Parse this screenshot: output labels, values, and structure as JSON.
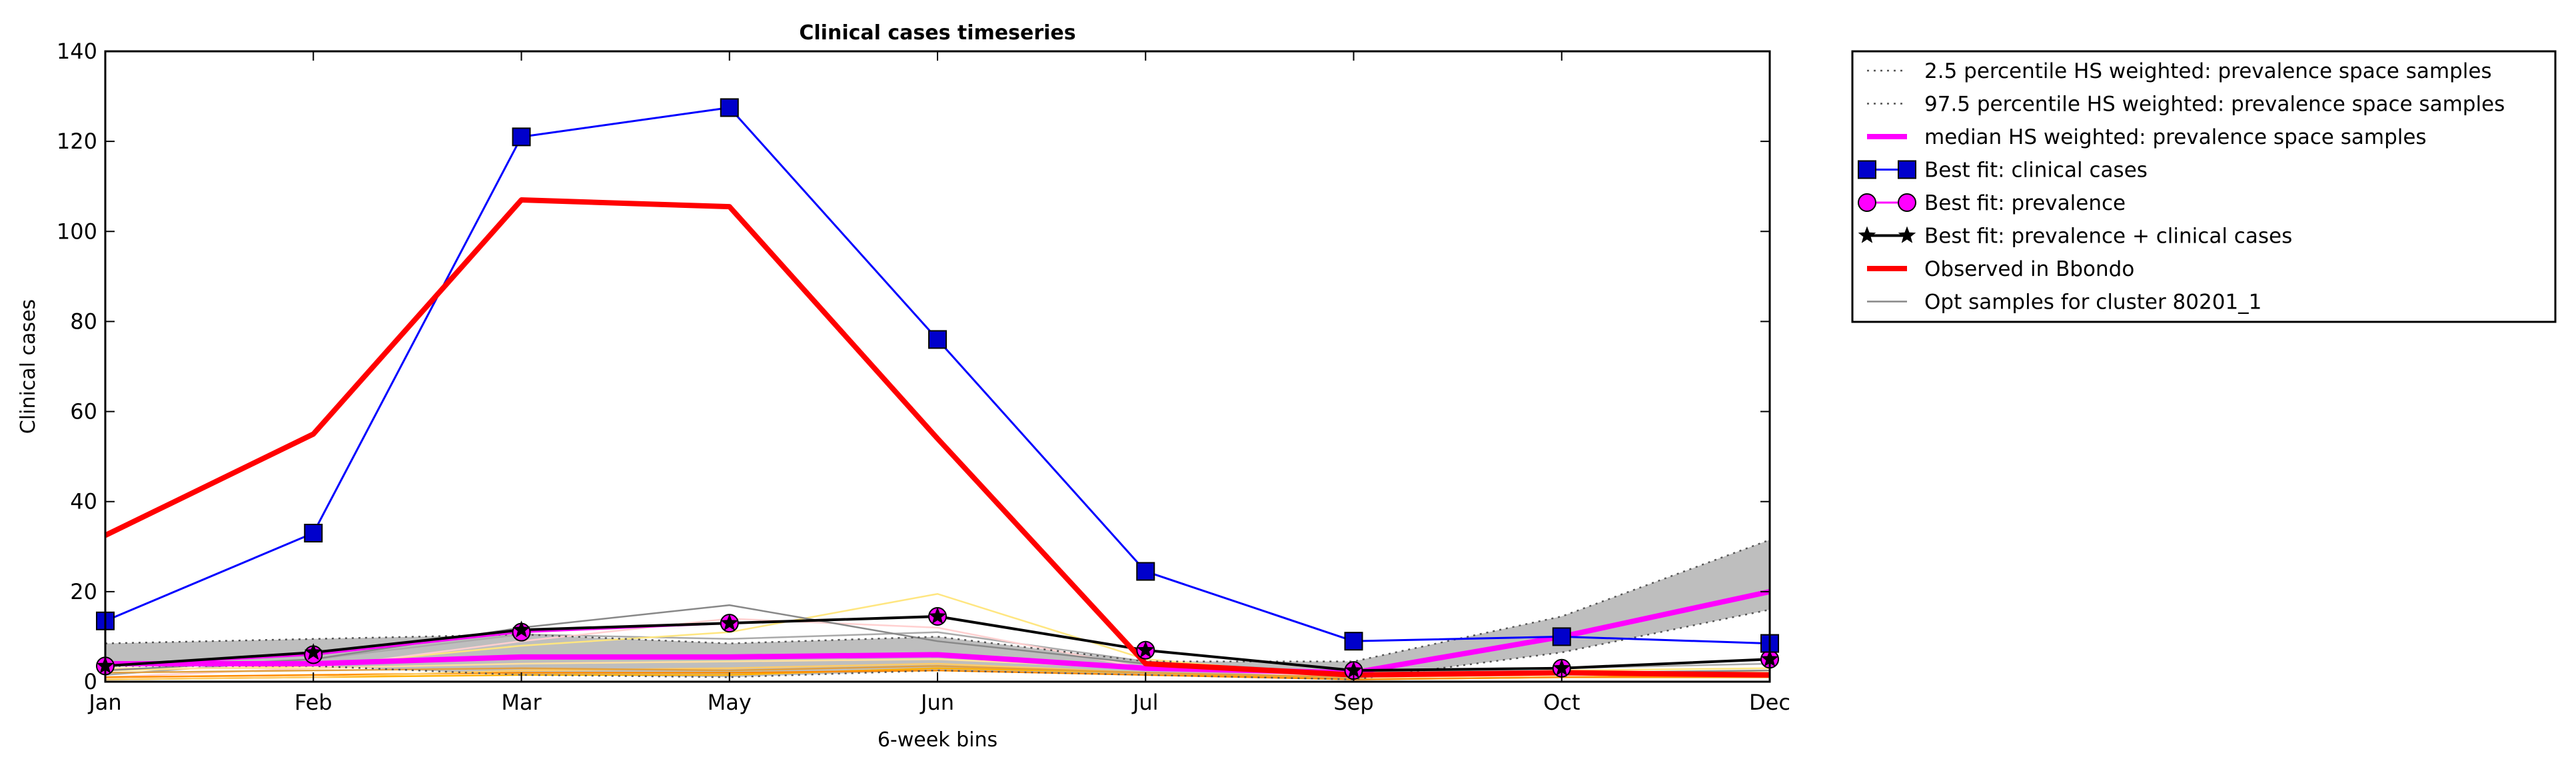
{
  "chart_data": {
    "type": "line",
    "title": "Clinical cases timeseries",
    "xlabel": "6-week bins",
    "ylabel": "Clinical cases",
    "categories": [
      "Jan",
      "Feb",
      "Mar",
      "May",
      "Jun",
      "Jul",
      "Sep",
      "Oct",
      "Dec"
    ],
    "ylim": [
      0,
      140
    ],
    "yticks": [
      0,
      20,
      40,
      60,
      80,
      100,
      120,
      140
    ],
    "grid": false,
    "legend_position": "outside-right",
    "series": [
      {
        "name": "2.5 percentile HS weighted: prevalence space samples",
        "style": "dotted",
        "color": "#555555",
        "values": [
          3.5,
          3.5,
          1.5,
          1.0,
          2.5,
          1.5,
          0.5,
          6.5,
          16.0
        ]
      },
      {
        "name": "97.5 percentile HS weighted: prevalence space samples",
        "style": "dotted",
        "color": "#555555",
        "values": [
          8.5,
          9.5,
          10.5,
          8.5,
          10.0,
          4.5,
          4.5,
          14.5,
          31.5
        ]
      },
      {
        "name": "median HS weighted: prevalence space samples",
        "style": "solid-thick",
        "color": "#ff00ff",
        "values": [
          4.0,
          4.0,
          5.5,
          5.5,
          6.0,
          3.0,
          2.0,
          10.0,
          20.0
        ]
      },
      {
        "name": "Best fit: clinical cases",
        "style": "square-markers",
        "color": "#0000ff",
        "values": [
          13.5,
          33,
          121,
          127.5,
          76,
          24.5,
          9,
          10,
          8.5
        ]
      },
      {
        "name": "Best fit: prevalence",
        "style": "circle-markers",
        "color": "#ff00ff",
        "values": [
          3.5,
          6,
          11,
          13,
          14.5,
          7,
          2.5,
          3,
          5
        ]
      },
      {
        "name": "Best fit: prevalence + clinical cases",
        "style": "star-markers",
        "color": "#000000",
        "values": [
          3.5,
          6.5,
          11.5,
          13,
          14.5,
          7,
          2.5,
          3,
          5
        ]
      },
      {
        "name": "Observed in Bbondo",
        "style": "solid-thick",
        "color": "#ff0000",
        "values": [
          32.5,
          55,
          107,
          105.5,
          54,
          4,
          1.5,
          2,
          1.5
        ]
      },
      {
        "name": "Opt samples for cluster 80201_1",
        "style": "thin",
        "color": "#888888",
        "values": [
          2.5,
          5,
          12,
          17,
          9,
          4,
          1.5,
          2,
          2.5
        ]
      }
    ],
    "extra_sample_lines": [
      {
        "color": "#aaaaaa",
        "values": [
          1.5,
          5,
          10.5,
          9.5,
          11,
          4.5,
          2,
          3,
          4
        ]
      },
      {
        "color": "#ffe680",
        "values": [
          2.5,
          3.5,
          8,
          11,
          19.5,
          5,
          1,
          2.5,
          3
        ]
      },
      {
        "color": "#ffd0d0",
        "values": [
          1,
          3,
          9,
          14,
          12,
          3,
          1,
          2,
          2
        ]
      },
      {
        "color": "#ffb000",
        "values": [
          0.5,
          1,
          1.5,
          1.5,
          3,
          2,
          0.5,
          1,
          1.5
        ]
      },
      {
        "color": "#ff8c00",
        "values": [
          1,
          1.5,
          2,
          2,
          2.5,
          1.5,
          0.5,
          1,
          1
        ]
      },
      {
        "color": "#ffcc66",
        "values": [
          0.5,
          1,
          2.5,
          3,
          4,
          2,
          1,
          1.5,
          2.5
        ]
      },
      {
        "color": "#e0a040",
        "values": [
          2,
          2.5,
          3,
          2.5,
          3.5,
          2,
          1,
          2,
          2
        ]
      },
      {
        "color": "#ffe0a0",
        "values": [
          3,
          3,
          4,
          4.5,
          5,
          3,
          1.5,
          2,
          2
        ]
      }
    ]
  }
}
